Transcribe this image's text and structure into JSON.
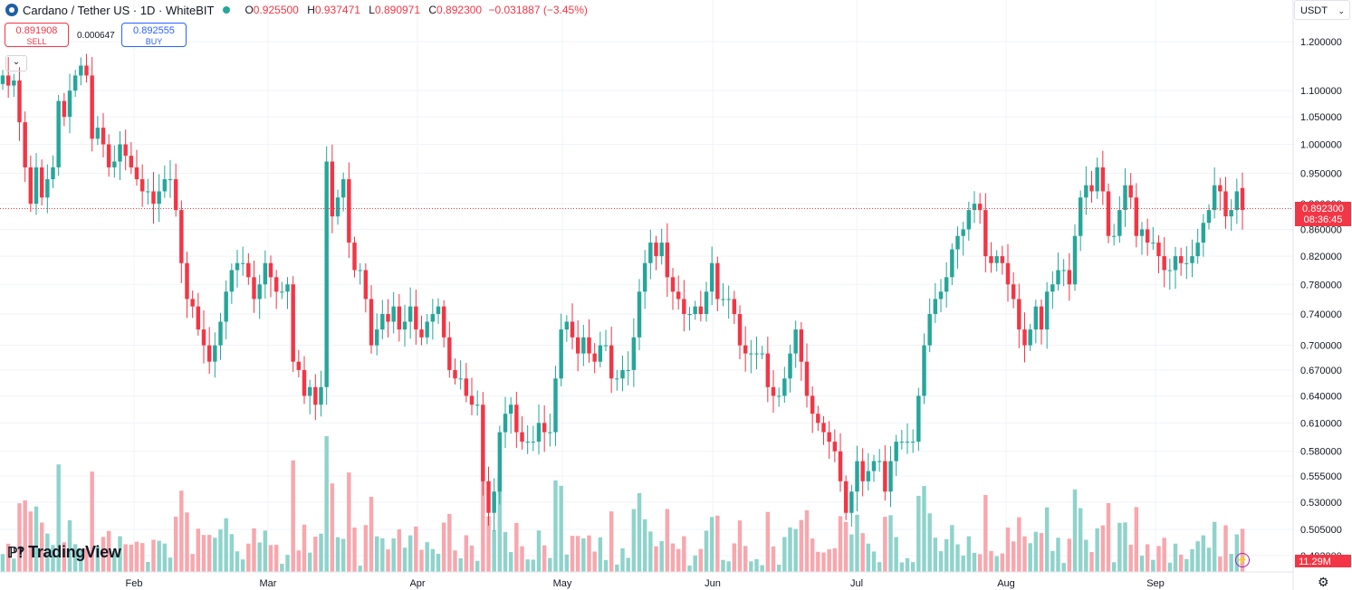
{
  "header": {
    "title": "Cardano / Tether US · 1D · WhiteBIT",
    "o_label": "O",
    "o_value": "0.925500",
    "h_label": "H",
    "h_value": "0.937471",
    "l_label": "L",
    "l_value": "0.890971",
    "c_label": "C",
    "c_value": "0.892300",
    "change": "−0.031887 (−3.45%)"
  },
  "trade": {
    "sell_price": "0.891908",
    "sell_label": "SELL",
    "spread": "0.000647",
    "buy_price": "0.892555",
    "buy_label": "BUY"
  },
  "currency_selector": "USDT",
  "collapse_icon": "chevron-down-icon",
  "branding": "TradingView",
  "price_label": {
    "price": "0.892300",
    "countdown": "08:36:45"
  },
  "volume_label": "11.29M",
  "colors": {
    "up": "#26a69a",
    "down": "#f23645",
    "up_volume": "#8fd3cb",
    "down_volume": "#f7a7ad"
  },
  "chart_data": {
    "type": "candlestick",
    "title": "Cardano / Tether US · 1D · WhiteBIT",
    "y_scale": "log",
    "y_ticks": [
      "1.200000",
      "1.100000",
      "1.050000",
      "1.000000",
      "0.950000",
      "0.900000",
      "0.860000",
      "0.820000",
      "0.780000",
      "0.740000",
      "0.700000",
      "0.670000",
      "0.640000",
      "0.610000",
      "0.580000",
      "0.555000",
      "0.530000",
      "0.505000",
      "0.482000"
    ],
    "x_ticks": [
      "Feb",
      "Mar",
      "Apr",
      "May",
      "Jun",
      "Jul",
      "Aug",
      "Sep"
    ],
    "last_price": 0.8923,
    "last_volume": "11.29M",
    "grid": true,
    "closes": [
      1.13,
      1.11,
      1.12,
      1.04,
      0.96,
      0.9,
      0.96,
      0.91,
      0.94,
      0.96,
      1.08,
      1.05,
      1.1,
      1.13,
      1.15,
      1.13,
      1.01,
      1.03,
      1.0,
      0.96,
      0.97,
      1.0,
      0.98,
      0.96,
      0.94,
      0.92,
      0.92,
      0.9,
      0.92,
      0.94,
      0.94,
      0.89,
      0.81,
      0.76,
      0.75,
      0.72,
      0.7,
      0.68,
      0.7,
      0.73,
      0.77,
      0.8,
      0.81,
      0.81,
      0.79,
      0.76,
      0.78,
      0.81,
      0.79,
      0.77,
      0.77,
      0.78,
      0.68,
      0.67,
      0.64,
      0.65,
      0.63,
      0.65,
      0.97,
      0.88,
      0.91,
      0.94,
      0.84,
      0.8,
      0.8,
      0.76,
      0.7,
      0.72,
      0.74,
      0.73,
      0.75,
      0.72,
      0.73,
      0.75,
      0.72,
      0.71,
      0.73,
      0.74,
      0.75,
      0.71,
      0.67,
      0.66,
      0.66,
      0.64,
      0.63,
      0.63,
      0.55,
      0.52,
      0.54,
      0.6,
      0.62,
      0.63,
      0.6,
      0.59,
      0.59,
      0.59,
      0.61,
      0.6,
      0.6,
      0.66,
      0.72,
      0.73,
      0.71,
      0.69,
      0.71,
      0.69,
      0.68,
      0.7,
      0.7,
      0.66,
      0.66,
      0.67,
      0.67,
      0.71,
      0.77,
      0.81,
      0.84,
      0.82,
      0.84,
      0.79,
      0.77,
      0.76,
      0.74,
      0.74,
      0.75,
      0.74,
      0.77,
      0.81,
      0.76,
      0.76,
      0.76,
      0.74,
      0.7,
      0.69,
      0.69,
      0.69,
      0.69,
      0.65,
      0.64,
      0.64,
      0.66,
      0.69,
      0.72,
      0.68,
      0.64,
      0.62,
      0.61,
      0.6,
      0.59,
      0.58,
      0.55,
      0.52,
      0.54,
      0.57,
      0.55,
      0.56,
      0.57,
      0.57,
      0.54,
      0.57,
      0.59,
      0.59,
      0.59,
      0.59,
      0.64,
      0.7,
      0.74,
      0.76,
      0.77,
      0.79,
      0.83,
      0.85,
      0.86,
      0.89,
      0.9,
      0.89,
      0.82,
      0.81,
      0.82,
      0.81,
      0.78,
      0.76,
      0.72,
      0.7,
      0.72,
      0.75,
      0.72,
      0.77,
      0.78,
      0.8,
      0.8,
      0.78,
      0.85,
      0.91,
      0.93,
      0.92,
      0.96,
      0.92,
      0.85,
      0.85,
      0.89,
      0.93,
      0.91,
      0.85,
      0.86,
      0.84,
      0.84,
      0.82,
      0.8,
      0.8,
      0.82,
      0.81,
      0.81,
      0.82,
      0.84,
      0.87,
      0.89,
      0.93,
      0.92,
      0.88,
      0.89,
      0.92,
      0.89
    ]
  }
}
